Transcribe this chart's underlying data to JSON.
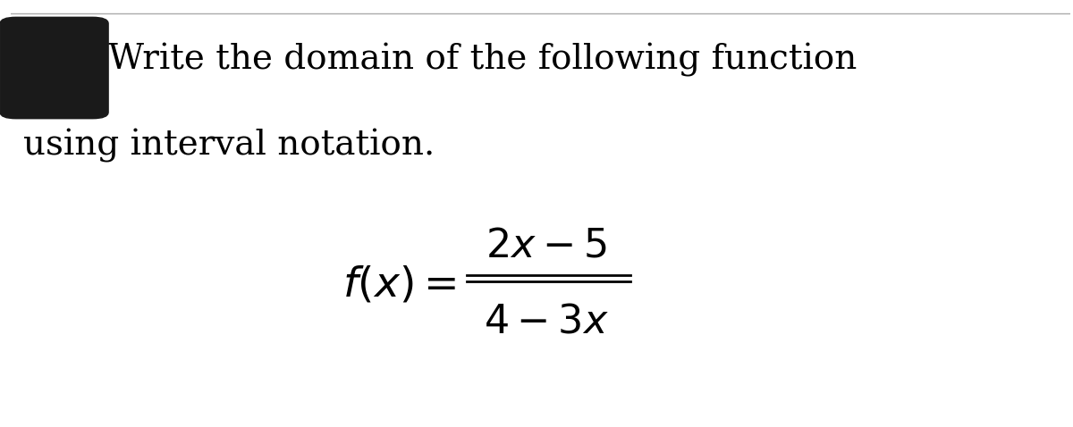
{
  "background_color": "#ffffff",
  "top_line_color": "#aaaaaa",
  "instruction_line1": "Write the domain of the following function",
  "instruction_line2": "using interval notation.",
  "text_color": "#000000",
  "icon_color": "#1a1a1a",
  "text_fontsize_title": 28,
  "text_fontsize_formula": 34,
  "text_fontsize_instruction": 28,
  "figwidth": 12.0,
  "figheight": 4.78,
  "dpi": 100
}
